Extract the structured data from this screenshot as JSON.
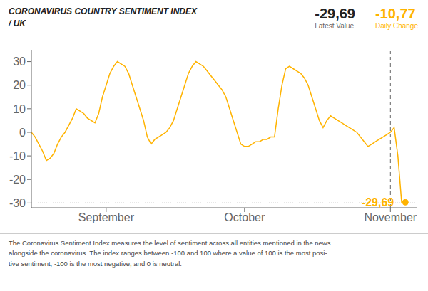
{
  "chart_data": {
    "type": "line",
    "title": "CORONAVIRUS COUNTRY SENTIMENT INDEX\n/ UK",
    "x": [
      0,
      1,
      2,
      3,
      4,
      5,
      6,
      7,
      8,
      9,
      10,
      11,
      12,
      13,
      14,
      15,
      16,
      17,
      18,
      19,
      20,
      21,
      22,
      23,
      24,
      25,
      26,
      27,
      28,
      29,
      30,
      31,
      32,
      33,
      34,
      35,
      36,
      37,
      38,
      39,
      40,
      41,
      42,
      43,
      44,
      45,
      46,
      47,
      48,
      49,
      50,
      51,
      52,
      53,
      54,
      55,
      56,
      57,
      58,
      59,
      60,
      61,
      62,
      63,
      64,
      65,
      66,
      67,
      68,
      69,
      70,
      71,
      72,
      73,
      74,
      75,
      76,
      77,
      78,
      79,
      80,
      81,
      82,
      83,
      84,
      85,
      86,
      87,
      88,
      89,
      90,
      91,
      92,
      93,
      94,
      95,
      96,
      97,
      98,
      99,
      100
    ],
    "values": [
      0,
      -2,
      -5,
      -8,
      -12,
      -11,
      -9,
      -5,
      -2,
      0,
      3,
      6,
      10,
      9,
      8,
      6,
      5,
      4,
      8,
      15,
      20,
      25,
      28,
      30,
      29,
      28,
      25,
      20,
      15,
      10,
      5,
      -2,
      -5,
      -3,
      -2,
      -1,
      0,
      2,
      5,
      10,
      15,
      20,
      25,
      28,
      30,
      29,
      28,
      26,
      24,
      22,
      20,
      18,
      15,
      10,
      5,
      0,
      -5,
      -6,
      -6,
      -5,
      -4,
      -4,
      -3,
      -3,
      -2,
      -2,
      10,
      20,
      27,
      28,
      27,
      26,
      25,
      23,
      20,
      15,
      10,
      5,
      2,
      5,
      7,
      6,
      5,
      4,
      3,
      2,
      1,
      0,
      -2,
      -4,
      -6,
      -5,
      -4,
      -3,
      -2,
      -1,
      0,
      2,
      -10,
      -29.69,
      -29.69
    ],
    "color": "#FFB300",
    "marker": "end",
    "xlim": [
      0,
      103
    ],
    "xticks": [
      {
        "value": 20,
        "label": "September"
      },
      {
        "value": 57,
        "label": "October"
      },
      {
        "value": 96,
        "label": "November"
      }
    ],
    "ylim": [
      -32,
      35
    ],
    "yticks": [
      30,
      20,
      10,
      0,
      -10,
      -20,
      -30
    ],
    "grid": false,
    "vlines": [
      96
    ],
    "hlines": [
      -30
    ],
    "annotations": [
      "-29,69"
    ],
    "stats": [
      {
        "name": "Latest Value",
        "text": "-29,69"
      },
      {
        "name": "Daily Change",
        "text": "-10,77",
        "color": "#FFB300"
      }
    ],
    "footer": "The Coronavirus Sentiment Index measures the level of sentiment across all entities mentioned in the news\nalongside the coronavirus. The index ranges between -100 and 100 where a value of 100 is the most posi-\ntive sentiment, -100 is the most negative, and 0 is neutral."
  }
}
